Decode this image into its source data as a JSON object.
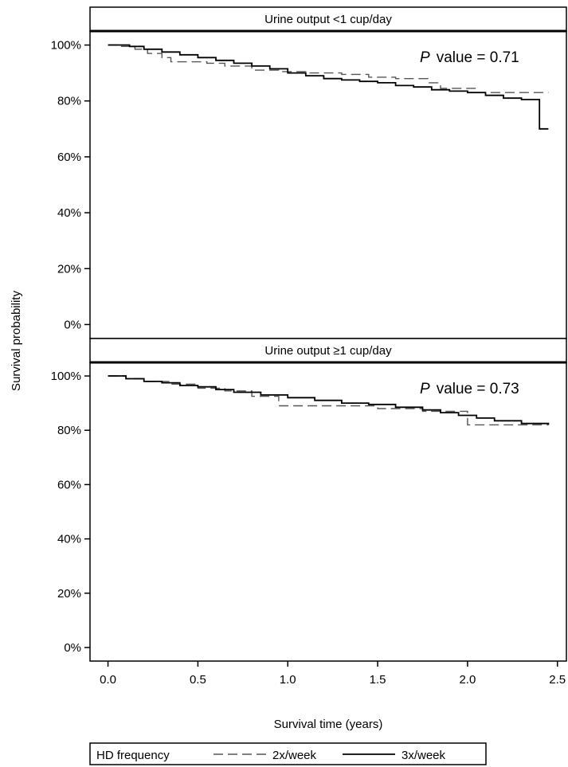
{
  "chart_data": {
    "type": "line",
    "subtype": "kaplan-meier step plot",
    "xlabel": "Survival time (years)",
    "ylabel": "Survival probability",
    "xlim": [
      -0.1,
      2.55
    ],
    "ylim": [
      -0.05,
      1.05
    ],
    "x_ticks": [
      0.0,
      0.5,
      1.0,
      1.5,
      2.0,
      2.5
    ],
    "x_tick_labels": [
      "0.0",
      "0.5",
      "1.0",
      "1.5",
      "2.0",
      "2.5"
    ],
    "y_ticks": [
      0,
      0.2,
      0.4,
      0.6,
      0.8,
      1.0
    ],
    "y_tick_labels": [
      "0%",
      "20%",
      "40%",
      "60%",
      "80%",
      "100%"
    ],
    "grid": false,
    "legend": {
      "placement": "bottom",
      "title": "HD frequency",
      "entries": [
        {
          "label": "2x/week",
          "style": "dashed"
        },
        {
          "label": "3x/week",
          "style": "solid"
        }
      ]
    },
    "panels": [
      {
        "title": "Urine output <1 cup/day",
        "p_label": "P",
        "p_text": "value = 0.71",
        "series": [
          {
            "name": "2x/week",
            "style": "dashed",
            "x": [
              0,
              0.07,
              0.15,
              0.22,
              0.3,
              0.35,
              0.55,
              0.65,
              0.8,
              0.95,
              1.1,
              1.3,
              1.45,
              1.6,
              1.78,
              1.85,
              2.05,
              2.45
            ],
            "y": [
              1.0,
              0.995,
              0.985,
              0.97,
              0.955,
              0.94,
              0.935,
              0.925,
              0.91,
              0.905,
              0.9,
              0.895,
              0.885,
              0.88,
              0.865,
              0.845,
              0.83,
              0.83
            ]
          },
          {
            "name": "3x/week",
            "style": "solid",
            "x": [
              0,
              0.12,
              0.2,
              0.3,
              0.4,
              0.5,
              0.6,
              0.7,
              0.8,
              0.9,
              1.0,
              1.1,
              1.2,
              1.3,
              1.4,
              1.5,
              1.6,
              1.7,
              1.8,
              1.9,
              2.0,
              2.1,
              2.2,
              2.3,
              2.4,
              2.45
            ],
            "y": [
              1.0,
              0.995,
              0.985,
              0.975,
              0.965,
              0.955,
              0.945,
              0.935,
              0.925,
              0.915,
              0.9,
              0.89,
              0.88,
              0.875,
              0.87,
              0.865,
              0.855,
              0.85,
              0.84,
              0.835,
              0.83,
              0.82,
              0.81,
              0.805,
              0.7,
              0.7
            ]
          }
        ]
      },
      {
        "title": "Urine output ≥1 cup/day",
        "p_label": "P",
        "p_text": "value = 0.73",
        "series": [
          {
            "name": "2x/week",
            "style": "dashed",
            "x": [
              0,
              0.1,
              0.2,
              0.35,
              0.5,
              0.65,
              0.8,
              0.95,
              1.5,
              1.75,
              2.0,
              2.45
            ],
            "y": [
              1.0,
              0.99,
              0.98,
              0.97,
              0.955,
              0.945,
              0.925,
              0.89,
              0.88,
              0.87,
              0.82,
              0.82
            ]
          },
          {
            "name": "3x/week",
            "style": "solid",
            "x": [
              0,
              0.1,
              0.2,
              0.3,
              0.4,
              0.5,
              0.6,
              0.7,
              0.85,
              1.0,
              1.15,
              1.3,
              1.45,
              1.6,
              1.75,
              1.85,
              1.95,
              2.05,
              2.15,
              2.3,
              2.45
            ],
            "y": [
              1.0,
              0.99,
              0.98,
              0.975,
              0.965,
              0.96,
              0.95,
              0.94,
              0.93,
              0.92,
              0.91,
              0.9,
              0.895,
              0.885,
              0.875,
              0.865,
              0.855,
              0.845,
              0.835,
              0.825,
              0.82
            ]
          }
        ]
      }
    ]
  }
}
